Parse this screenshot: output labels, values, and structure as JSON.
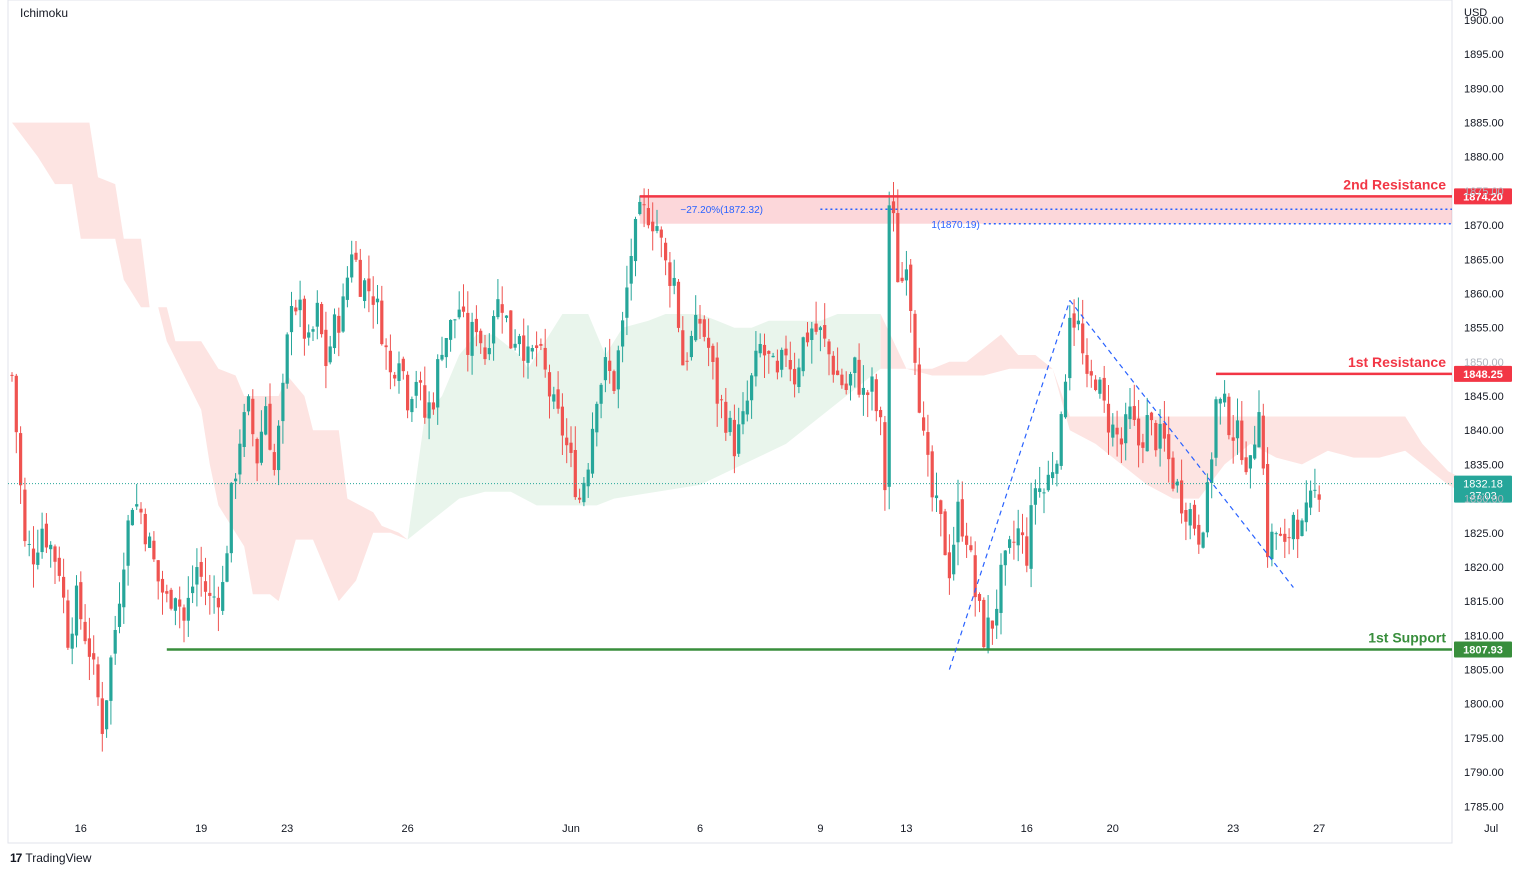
{
  "indicator_label": "Ichimoku",
  "currency_label": "USD",
  "branding": {
    "logo": "17",
    "name": "TradingView"
  },
  "colors": {
    "up": "#26a69a",
    "down": "#ef5350",
    "resistance": "#f23645",
    "support": "#388e3c",
    "cloud_bull": "#e9f5ec",
    "cloud_bear": "#fde4e2",
    "fib": "#2962ff",
    "price_line": "#26a69a"
  },
  "chart_data": {
    "type": "candlestick",
    "ylim": [
      1784,
      1903
    ],
    "y_ticks": [
      1785,
      1790,
      1795,
      1800,
      1805,
      1810,
      1815,
      1820,
      1825,
      1830,
      1835,
      1840,
      1845,
      1850,
      1855,
      1860,
      1865,
      1870,
      1875,
      1880,
      1885,
      1890,
      1895,
      1900
    ],
    "x_tick_labels": [
      {
        "label": "16",
        "bar": 16
      },
      {
        "label": "19",
        "bar": 44
      },
      {
        "label": "23",
        "bar": 64
      },
      {
        "label": "26",
        "bar": 92
      },
      {
        "label": "Jun",
        "bar": 130
      },
      {
        "label": "6",
        "bar": 160
      },
      {
        "label": "9",
        "bar": 188
      },
      {
        "label": "13",
        "bar": 208
      },
      {
        "label": "16",
        "bar": 236
      },
      {
        "label": "20",
        "bar": 256
      },
      {
        "label": "23",
        "bar": 284
      },
      {
        "label": "27",
        "bar": 304
      },
      {
        "label": "Jul",
        "bar": 344
      }
    ],
    "close_path": [
      [
        0,
        1848
      ],
      [
        1,
        1840
      ],
      [
        3,
        1823
      ],
      [
        5,
        1822
      ],
      [
        7,
        1826
      ],
      [
        9,
        1823
      ],
      [
        11,
        1820
      ],
      [
        13,
        1810
      ],
      [
        15,
        1815
      ],
      [
        18,
        1808
      ],
      [
        21,
        1797
      ],
      [
        24,
        1811
      ],
      [
        26,
        1822
      ],
      [
        28,
        1830
      ],
      [
        30,
        1828
      ],
      [
        32,
        1823
      ],
      [
        34,
        1818
      ],
      [
        36,
        1815
      ],
      [
        38,
        1817
      ],
      [
        40,
        1812
      ],
      [
        43,
        1820
      ],
      [
        46,
        1815
      ],
      [
        49,
        1817
      ],
      [
        51,
        1830
      ],
      [
        53,
        1839
      ],
      [
        55,
        1843
      ],
      [
        57,
        1836
      ],
      [
        59,
        1844
      ],
      [
        61,
        1834
      ],
      [
        63,
        1845
      ],
      [
        65,
        1860
      ],
      [
        67,
        1857
      ],
      [
        69,
        1852
      ],
      [
        71,
        1857
      ],
      [
        73,
        1850
      ],
      [
        75,
        1855
      ],
      [
        77,
        1858
      ],
      [
        79,
        1867
      ],
      [
        81,
        1862
      ],
      [
        84,
        1860
      ],
      [
        86,
        1855
      ],
      [
        88,
        1848
      ],
      [
        90,
        1852
      ],
      [
        92,
        1845
      ],
      [
        94,
        1848
      ],
      [
        96,
        1842
      ],
      [
        98,
        1845
      ],
      [
        100,
        1853
      ],
      [
        102,
        1855
      ],
      [
        104,
        1858
      ],
      [
        106,
        1852
      ],
      [
        108,
        1856
      ],
      [
        110,
        1851
      ],
      [
        112,
        1858
      ],
      [
        114,
        1859
      ],
      [
        116,
        1853
      ],
      [
        118,
        1855
      ],
      [
        120,
        1850
      ],
      [
        122,
        1852
      ],
      [
        124,
        1848
      ],
      [
        126,
        1843
      ],
      [
        128,
        1840
      ],
      [
        130,
        1835
      ],
      [
        132,
        1830
      ],
      [
        134,
        1836
      ],
      [
        136,
        1846
      ],
      [
        138,
        1849
      ],
      [
        140,
        1847
      ],
      [
        142,
        1855
      ],
      [
        144,
        1866
      ],
      [
        146,
        1871
      ],
      [
        148,
        1872
      ],
      [
        150,
        1870
      ],
      [
        152,
        1864
      ],
      [
        154,
        1862
      ],
      [
        156,
        1850
      ],
      [
        158,
        1853
      ],
      [
        160,
        1856
      ],
      [
        162,
        1852
      ],
      [
        164,
        1845
      ],
      [
        166,
        1842
      ],
      [
        168,
        1838
      ],
      [
        170,
        1841
      ],
      [
        172,
        1847
      ],
      [
        174,
        1852
      ],
      [
        176,
        1850
      ],
      [
        178,
        1847
      ],
      [
        180,
        1852
      ],
      [
        182,
        1848
      ],
      [
        184,
        1853
      ],
      [
        186,
        1855
      ],
      [
        188,
        1854
      ],
      [
        190,
        1851
      ],
      [
        192,
        1848
      ],
      [
        194,
        1846
      ],
      [
        196,
        1849
      ],
      [
        198,
        1845
      ],
      [
        200,
        1846
      ],
      [
        202,
        1840
      ],
      [
        203,
        1832
      ],
      [
        204,
        1873
      ],
      [
        205,
        1870
      ],
      [
        206,
        1863
      ],
      [
        207,
        1862
      ],
      [
        208,
        1866
      ],
      [
        210,
        1852
      ],
      [
        212,
        1838
      ],
      [
        214,
        1830
      ],
      [
        216,
        1826
      ],
      [
        218,
        1820
      ],
      [
        220,
        1828
      ],
      [
        222,
        1825
      ],
      [
        224,
        1816
      ],
      [
        226,
        1810
      ],
      [
        228,
        1812
      ],
      [
        230,
        1818
      ],
      [
        232,
        1822
      ],
      [
        234,
        1825
      ],
      [
        236,
        1822
      ],
      [
        238,
        1832
      ],
      [
        240,
        1831
      ],
      [
        242,
        1835
      ],
      [
        244,
        1840
      ],
      [
        246,
        1858
      ],
      [
        248,
        1855
      ],
      [
        250,
        1846
      ],
      [
        252,
        1848
      ],
      [
        254,
        1843
      ],
      [
        256,
        1840
      ],
      [
        258,
        1838
      ],
      [
        260,
        1842
      ],
      [
        262,
        1838
      ],
      [
        264,
        1841
      ],
      [
        266,
        1839
      ],
      [
        268,
        1838
      ],
      [
        270,
        1833
      ],
      [
        272,
        1830
      ],
      [
        274,
        1828
      ],
      [
        276,
        1825
      ],
      [
        278,
        1830
      ],
      [
        280,
        1844
      ],
      [
        282,
        1843
      ],
      [
        284,
        1840
      ],
      [
        286,
        1838
      ],
      [
        288,
        1834
      ],
      [
        290,
        1845
      ],
      [
        292,
        1823
      ],
      [
        294,
        1825
      ],
      [
        296,
        1822
      ],
      [
        298,
        1828
      ],
      [
        300,
        1825
      ],
      [
        302,
        1829
      ],
      [
        304,
        1832
      ]
    ],
    "last_bar": 304,
    "cloud": {
      "bear_top": [
        [
          0,
          1885
        ],
        [
          18,
          1885
        ],
        [
          20,
          1877
        ],
        [
          24,
          1876
        ],
        [
          26,
          1868
        ],
        [
          30,
          1868
        ],
        [
          32,
          1858
        ],
        [
          36,
          1858
        ],
        [
          38,
          1853
        ],
        [
          44,
          1853
        ],
        [
          46,
          1851
        ],
        [
          48,
          1849
        ],
        [
          52,
          1848
        ],
        [
          54,
          1845
        ],
        [
          62,
          1845
        ],
        [
          64,
          1848
        ],
        [
          68,
          1845
        ],
        [
          70,
          1840
        ],
        [
          76,
          1840
        ],
        [
          78,
          1830
        ],
        [
          84,
          1828
        ],
        [
          86,
          1826
        ],
        [
          90,
          1825
        ],
        [
          92,
          1824
        ]
      ],
      "bear_bottom": [
        [
          0,
          1885
        ],
        [
          6,
          1880
        ],
        [
          10,
          1876
        ],
        [
          14,
          1876
        ],
        [
          16,
          1868
        ],
        [
          24,
          1868
        ],
        [
          26,
          1862
        ],
        [
          30,
          1858
        ],
        [
          34,
          1858
        ],
        [
          36,
          1853
        ],
        [
          40,
          1848
        ],
        [
          44,
          1843
        ],
        [
          46,
          1835
        ],
        [
          48,
          1829
        ],
        [
          54,
          1823
        ],
        [
          56,
          1816
        ],
        [
          60,
          1816
        ],
        [
          62,
          1815
        ],
        [
          66,
          1824
        ],
        [
          70,
          1824
        ],
        [
          74,
          1818
        ],
        [
          76,
          1815
        ],
        [
          80,
          1818
        ],
        [
          84,
          1825
        ],
        [
          88,
          1825
        ],
        [
          92,
          1824
        ]
      ],
      "bull_top": [
        [
          92,
          1824
        ],
        [
          96,
          1842
        ],
        [
          100,
          1845
        ],
        [
          104,
          1851
        ],
        [
          108,
          1854
        ],
        [
          112,
          1854
        ],
        [
          118,
          1851
        ],
        [
          120,
          1849
        ],
        [
          128,
          1857
        ],
        [
          134,
          1857
        ],
        [
          138,
          1851
        ],
        [
          142,
          1855
        ],
        [
          148,
          1856
        ],
        [
          152,
          1857
        ],
        [
          156,
          1857
        ],
        [
          160,
          1857
        ],
        [
          164,
          1856
        ],
        [
          168,
          1855
        ],
        [
          172,
          1855
        ],
        [
          176,
          1856
        ],
        [
          180,
          1856
        ],
        [
          184,
          1856
        ],
        [
          188,
          1856
        ],
        [
          192,
          1857
        ],
        [
          196,
          1857
        ],
        [
          200,
          1857
        ],
        [
          202,
          1857
        ]
      ],
      "bull_bottom": [
        [
          92,
          1824
        ],
        [
          96,
          1826
        ],
        [
          100,
          1828
        ],
        [
          104,
          1830
        ],
        [
          110,
          1831
        ],
        [
          116,
          1831
        ],
        [
          122,
          1829
        ],
        [
          128,
          1829
        ],
        [
          132,
          1829
        ],
        [
          136,
          1829
        ],
        [
          140,
          1830
        ],
        [
          150,
          1831
        ],
        [
          160,
          1832
        ],
        [
          170,
          1835
        ],
        [
          180,
          1838
        ],
        [
          190,
          1843
        ],
        [
          200,
          1848
        ],
        [
          202,
          1849
        ]
      ],
      "bear2_top": [
        [
          202,
          1857
        ],
        [
          208,
          1849
        ],
        [
          214,
          1849
        ],
        [
          218,
          1850
        ],
        [
          222,
          1850
        ],
        [
          226,
          1852
        ],
        [
          230,
          1854
        ],
        [
          234,
          1851
        ],
        [
          238,
          1851
        ],
        [
          242,
          1849
        ],
        [
          246,
          1842
        ],
        [
          252,
          1842
        ],
        [
          258,
          1842
        ],
        [
          264,
          1842
        ],
        [
          270,
          1842
        ],
        [
          276,
          1842
        ],
        [
          282,
          1842
        ],
        [
          288,
          1842
        ],
        [
          294,
          1842
        ],
        [
          300,
          1842
        ],
        [
          306,
          1842
        ],
        [
          312,
          1842
        ],
        [
          318,
          1842
        ],
        [
          324,
          1842
        ],
        [
          328,
          1838
        ],
        [
          334,
          1834
        ],
        [
          340,
          1832
        ],
        [
          344,
          1831
        ]
      ],
      "bear2_bottom": [
        [
          202,
          1849
        ],
        [
          208,
          1849
        ],
        [
          214,
          1848
        ],
        [
          220,
          1848
        ],
        [
          226,
          1848
        ],
        [
          232,
          1849
        ],
        [
          238,
          1849
        ],
        [
          242,
          1849
        ],
        [
          246,
          1840
        ],
        [
          252,
          1838
        ],
        [
          258,
          1835
        ],
        [
          264,
          1832
        ],
        [
          270,
          1830
        ],
        [
          276,
          1830
        ],
        [
          282,
          1835
        ],
        [
          288,
          1838
        ],
        [
          294,
          1836
        ],
        [
          300,
          1835
        ],
        [
          306,
          1837
        ],
        [
          312,
          1836
        ],
        [
          318,
          1836
        ],
        [
          324,
          1837
        ],
        [
          328,
          1835
        ],
        [
          334,
          1832
        ],
        [
          340,
          1830
        ],
        [
          344,
          1830
        ]
      ]
    },
    "levels": [
      {
        "name": "2nd Resistance",
        "value": "1874.20",
        "y": 1874.2,
        "from_bar": 146
      },
      {
        "name": "1st Resistance",
        "value": "1848.25",
        "y": 1848.25,
        "from_bar": 280
      },
      {
        "name": "1st Support",
        "value": "1807.93",
        "y": 1807.93,
        "from_bar": 36
      }
    ],
    "resistance_zone": {
      "top": 1874.2,
      "bottom": 1870.2,
      "from_bar": 146
    },
    "fib_lines": [
      {
        "label": "−27.20%(1872.32)",
        "y": 1872.32,
        "from_bar": 188
      },
      {
        "label": "1(1870.19)",
        "y": 1870.19,
        "from_bar": 226
      }
    ],
    "pattern_lines": [
      {
        "from": [
          218,
          1805
        ],
        "to": [
          246,
          1859
        ]
      },
      {
        "from": [
          246,
          1859
        ],
        "to": [
          298,
          1817
        ]
      }
    ],
    "current_price": {
      "value": "1832.18",
      "countdown": "37:03",
      "y": 1832.18
    }
  }
}
